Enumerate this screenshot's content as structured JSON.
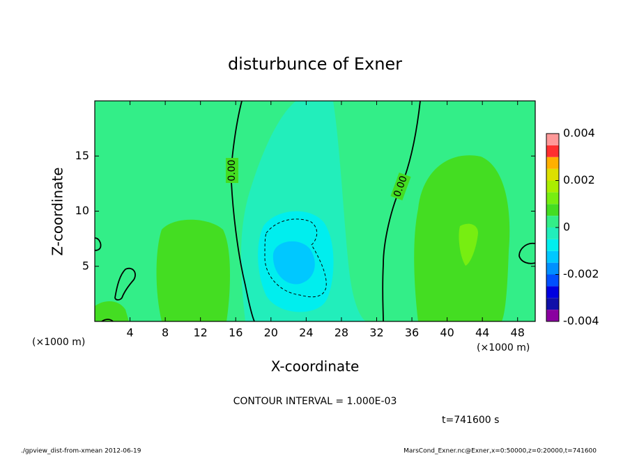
{
  "chart_data": {
    "type": "contour",
    "title": "disturbunce of Exner",
    "x_label": "X-coordinate",
    "y_label": "Z-coordinate",
    "x_unit": "(×1000 m)",
    "xlim": [
      0,
      50
    ],
    "xticks": [
      4,
      8,
      12,
      16,
      20,
      24,
      28,
      32,
      36,
      40,
      44,
      48
    ],
    "ylim": [
      0,
      20
    ],
    "yticks": [
      5,
      10,
      15
    ],
    "colorbar": {
      "levels": [
        -0.004,
        -0.0035,
        -0.003,
        -0.0025,
        -0.002,
        -0.0015,
        -0.001,
        -0.0005,
        0,
        0.0005,
        0.001,
        0.0015,
        0.002,
        0.0025,
        0.003,
        0.0035,
        0.004
      ],
      "colors": [
        "#8a00a0",
        "#1010a8",
        "#0000e0",
        "#0050ff",
        "#0090ff",
        "#00c8ff",
        "#00eeee",
        "#22eebb",
        "#33ee88",
        "#44dd22",
        "#77ee11",
        "#aaee00",
        "#dde000",
        "#ffb000",
        "#ff3030",
        "#ff9999"
      ],
      "ticks": [
        0.004,
        0.002,
        0,
        -0.002,
        -0.004
      ]
    },
    "regions": [
      {
        "value": 0
      },
      {
        "value": 0.0005
      },
      {
        "value": 0.001
      },
      {
        "value": -0.0005
      },
      {
        "value": -0.001
      },
      {
        "value": -0.0015
      }
    ],
    "contours": [
      {
        "value": 0,
        "label": "0.00"
      },
      {
        "value": -0.001
      }
    ],
    "contour_interval": "CONTOUR INTERVAL = 1.000E-03",
    "time": "t=741600 s",
    "footer_left": "./gpview_dist-from-xmean  2012-06-19",
    "footer_right": "MarsCond_Exner.nc@Exner,x=0:50000,z=0:20000,t=741600"
  }
}
